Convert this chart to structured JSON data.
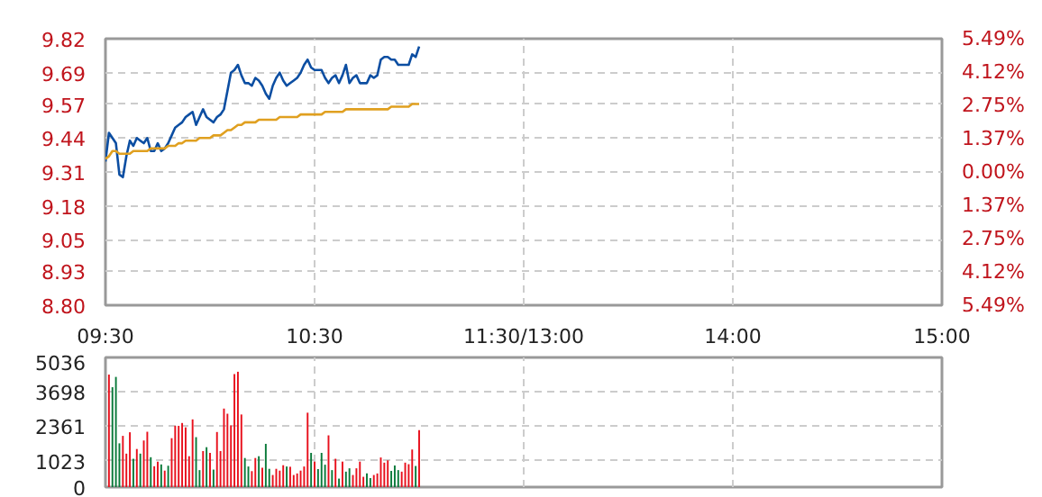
{
  "chart_data": [
    {
      "type": "line",
      "categories": [
        "09:30",
        null,
        null,
        null,
        null,
        null,
        null,
        null,
        null,
        null,
        null,
        null,
        null,
        null,
        null,
        null,
        null,
        null,
        null,
        null,
        null,
        null,
        null,
        null,
        null,
        null,
        null,
        null,
        null,
        null,
        null,
        null,
        null,
        null,
        null,
        null,
        null,
        null,
        null,
        null,
        null,
        null,
        null,
        null,
        null,
        null,
        null,
        null,
        null,
        null,
        null,
        null,
        null,
        null,
        null,
        null,
        null,
        null,
        null,
        null,
        "10:30",
        null,
        null,
        null,
        null,
        null,
        null,
        null,
        null,
        null,
        null,
        null,
        null,
        null,
        null,
        null,
        null,
        null,
        null,
        null,
        null,
        null,
        null,
        null,
        null,
        null,
        null,
        null,
        null,
        null,
        null,
        null,
        null,
        null,
        null,
        null,
        null,
        null,
        null,
        null,
        null,
        null,
        null,
        null,
        null,
        null,
        null,
        null,
        null,
        null,
        null,
        null,
        null,
        null,
        null,
        null,
        null,
        null,
        null,
        null,
        "11:30/13:00",
        null,
        null,
        null,
        null,
        null,
        null,
        null,
        null,
        null,
        null,
        null,
        null,
        null,
        null,
        null,
        null,
        null,
        null,
        null,
        null,
        null,
        null,
        null,
        null,
        null,
        null,
        null,
        null,
        null,
        null,
        null,
        null,
        null,
        null,
        null,
        null,
        null,
        null,
        null,
        null,
        null,
        null,
        null,
        null,
        null,
        null,
        null,
        null,
        null,
        null,
        null,
        null,
        null,
        null,
        null,
        null,
        null,
        null,
        null,
        "14:00",
        null,
        null,
        null,
        null,
        null,
        null,
        null,
        null,
        null,
        null,
        null,
        null,
        null,
        null,
        null,
        null,
        null,
        null,
        null,
        null,
        null,
        null,
        null,
        null,
        null,
        null,
        null,
        null,
        null,
        null,
        null,
        null,
        null,
        null,
        null,
        null,
        null,
        null,
        null,
        null,
        null,
        null,
        null,
        null,
        null,
        null,
        null,
        null,
        null,
        null,
        null,
        null,
        null,
        null,
        null,
        null,
        null,
        null,
        null,
        "15:00"
      ],
      "ylim": [
        8.8,
        9.82
      ],
      "y2lim": [
        -5.49,
        5.49
      ],
      "grid": true,
      "yticks": [
        {
          "value": 8.8,
          "label": "8.80"
        },
        8.93,
        9.05,
        9.18,
        9.31,
        9.44,
        9.57,
        9.69,
        9.82
      ],
      "y2ticks": [
        {
          "value": -5.49,
          "label": "5.49%"
        },
        {
          "value": -4.12,
          "label": "4.12%"
        },
        {
          "value": -2.75,
          "label": "2.75%"
        },
        {
          "value": -1.37,
          "label": "1.37%"
        },
        {
          "value": 0,
          "label": "0.00%"
        },
        {
          "value": 1.37,
          "label": "1.37%"
        },
        {
          "value": 2.75,
          "label": "2.75%"
        },
        {
          "value": 4.12,
          "label": "4.12%"
        },
        {
          "value": 5.49,
          "label": "5.49%"
        }
      ],
      "series": [
        {
          "color": "#0c4ea2",
          "values": [
            9.35,
            9.46,
            9.44,
            9.42,
            9.3,
            9.29,
            9.37,
            9.43,
            9.41,
            9.44,
            9.43,
            9.42,
            9.44,
            9.39,
            9.39,
            9.42,
            9.39,
            9.4,
            9.42,
            9.45,
            9.48,
            9.49,
            9.5,
            9.52,
            9.53,
            9.54,
            9.49,
            9.52,
            9.55,
            9.52,
            9.51,
            9.5,
            9.52,
            9.53,
            9.55,
            9.62,
            9.69,
            9.7,
            9.72,
            9.68,
            9.65,
            9.65,
            9.64,
            9.67,
            9.66,
            9.64,
            9.61,
            9.59,
            9.64,
            9.67,
            9.69,
            9.66,
            9.64,
            9.65,
            9.66,
            9.67,
            9.69,
            9.72,
            9.74,
            9.71,
            9.7,
            9.7,
            9.7,
            9.67,
            9.65,
            9.67,
            9.68,
            9.65,
            9.68,
            9.72,
            9.65,
            9.67,
            9.68,
            9.65,
            9.65,
            9.65,
            9.68,
            9.67,
            9.68,
            9.74,
            9.75,
            9.75,
            9.74,
            9.74,
            9.72,
            9.72,
            9.72,
            9.72,
            9.76,
            9.75,
            9.79,
            null,
            null,
            null,
            null,
            null,
            null,
            null,
            null,
            null,
            null,
            null,
            null,
            null,
            null,
            null,
            null,
            null,
            null,
            null,
            null,
            null,
            null,
            null,
            null,
            null,
            null,
            null,
            null,
            null,
            null,
            null,
            null,
            null,
            null,
            null,
            null,
            null,
            null,
            null,
            null,
            null,
            null,
            null,
            null,
            null,
            null,
            null,
            null,
            null,
            null,
            null,
            null,
            null,
            null,
            null,
            null,
            null,
            null,
            null,
            null,
            null,
            null,
            null,
            null,
            null,
            null,
            null,
            null,
            null,
            null,
            null,
            null,
            null,
            null,
            null,
            null,
            null,
            null,
            null,
            null,
            null,
            null,
            null,
            null,
            null,
            null,
            null,
            null,
            null,
            null,
            null,
            null,
            null,
            null,
            null,
            null,
            null,
            null,
            null,
            null,
            null,
            null,
            null,
            null,
            null,
            null,
            null,
            null,
            null,
            null,
            null,
            null,
            null,
            null,
            null,
            null,
            null,
            null,
            null,
            null,
            null,
            null,
            null,
            null,
            null,
            null,
            null,
            null,
            null,
            null,
            null,
            null,
            null,
            null,
            null,
            null,
            null,
            null,
            null,
            null,
            null,
            null,
            null,
            null,
            null,
            null,
            null,
            null,
            null,
            null
          ]
        },
        {
          "color": "#e0a020",
          "values": [
            9.36,
            9.37,
            9.39,
            9.39,
            9.38,
            9.38,
            9.38,
            9.38,
            9.39,
            9.39,
            9.39,
            9.39,
            9.39,
            9.4,
            9.4,
            9.4,
            9.4,
            9.4,
            9.41,
            9.41,
            9.41,
            9.42,
            9.42,
            9.43,
            9.43,
            9.43,
            9.43,
            9.44,
            9.44,
            9.44,
            9.44,
            9.45,
            9.45,
            9.45,
            9.46,
            9.47,
            9.47,
            9.48,
            9.49,
            9.49,
            9.5,
            9.5,
            9.5,
            9.5,
            9.51,
            9.51,
            9.51,
            9.51,
            9.51,
            9.51,
            9.52,
            9.52,
            9.52,
            9.52,
            9.52,
            9.52,
            9.53,
            9.53,
            9.53,
            9.53,
            9.53,
            9.53,
            9.53,
            9.54,
            9.54,
            9.54,
            9.54,
            9.54,
            9.54,
            9.55,
            9.55,
            9.55,
            9.55,
            9.55,
            9.55,
            9.55,
            9.55,
            9.55,
            9.55,
            9.55,
            9.55,
            9.55,
            9.56,
            9.56,
            9.56,
            9.56,
            9.56,
            9.56,
            9.57,
            9.57,
            9.57,
            null,
            null,
            null,
            null,
            null,
            null,
            null,
            null,
            null,
            null,
            null,
            null,
            null,
            null,
            null,
            null,
            null,
            null,
            null,
            null,
            null,
            null,
            null,
            null,
            null,
            null,
            null,
            null,
            null,
            null,
            null,
            null,
            null,
            null,
            null,
            null,
            null,
            null,
            null,
            null,
            null,
            null,
            null,
            null,
            null,
            null,
            null,
            null,
            null,
            null,
            null,
            null,
            null,
            null,
            null,
            null,
            null,
            null,
            null,
            null,
            null,
            null,
            null,
            null,
            null,
            null,
            null,
            null,
            null,
            null,
            null,
            null,
            null,
            null,
            null,
            null,
            null,
            null,
            null,
            null,
            null,
            null,
            null,
            null,
            null,
            null,
            null,
            null,
            null,
            null,
            null,
            null,
            null,
            null,
            null,
            null,
            null,
            null,
            null,
            null,
            null,
            null,
            null,
            null,
            null,
            null,
            null,
            null,
            null,
            null,
            null,
            null,
            null,
            null,
            null,
            null,
            null,
            null,
            null,
            null,
            null,
            null,
            null,
            null,
            null,
            null,
            null,
            null,
            null,
            null,
            null,
            null,
            null,
            null,
            null,
            null,
            null,
            null,
            null,
            null,
            null,
            null,
            null,
            null,
            null,
            null,
            null,
            null,
            null,
            null
          ]
        }
      ]
    },
    {
      "type": "bar",
      "categories": [
        null,
        null,
        null,
        null,
        null,
        null,
        null,
        null,
        null,
        null,
        null,
        null,
        null,
        null,
        null,
        null,
        null,
        null,
        null,
        null,
        null,
        null,
        null,
        null,
        null,
        null,
        null,
        null,
        null,
        null,
        null,
        null,
        null,
        null,
        null,
        null,
        null,
        null,
        null,
        null,
        null,
        null,
        null,
        null,
        null,
        null,
        null,
        null,
        null,
        null,
        null,
        null,
        null,
        null,
        null,
        null,
        null,
        null,
        null,
        null,
        null,
        null,
        null,
        null,
        null,
        null,
        null,
        null,
        null,
        null,
        null,
        null,
        null,
        null,
        null,
        null,
        null,
        null,
        null,
        null,
        null,
        null,
        null,
        null,
        null,
        null,
        null,
        null,
        null,
        null,
        null,
        null,
        null,
        null,
        null,
        null,
        null,
        null,
        null,
        null,
        null,
        null,
        null,
        null,
        null,
        null,
        null,
        null,
        null,
        null,
        null,
        null,
        null,
        null,
        null,
        null,
        null,
        null,
        null,
        null,
        null,
        null,
        null,
        null,
        null,
        null,
        null,
        null,
        null,
        null,
        null,
        null,
        null,
        null,
        null,
        null,
        null,
        null,
        null,
        null,
        null,
        null,
        null,
        null,
        null,
        null,
        null,
        null,
        null,
        null,
        null,
        null,
        null,
        null,
        null,
        null,
        null,
        null,
        null,
        null,
        null,
        null,
        null,
        null,
        null,
        null,
        null,
        null,
        null,
        null,
        null,
        null,
        null,
        null,
        null,
        null,
        null,
        null,
        null,
        null,
        null,
        null,
        null,
        null,
        null,
        null,
        null,
        null,
        null,
        null,
        null,
        null,
        null,
        null,
        null,
        null,
        null,
        null,
        null,
        null,
        null,
        null,
        null,
        null,
        null,
        null,
        null,
        null,
        null,
        null,
        null,
        null,
        null,
        null,
        null,
        null,
        null,
        null,
        null,
        null,
        null,
        null,
        null,
        null,
        null,
        null,
        null,
        null,
        null,
        null,
        null,
        null,
        null,
        null,
        null,
        null,
        null,
        null,
        null,
        null,
        null
      ],
      "ylim": [
        0,
        5036
      ],
      "yticks": [
        0,
        1023,
        2361,
        3698,
        5036
      ],
      "grid": true,
      "tick_labels": "y",
      "values": [
        null,
        4370,
        3880,
        4280,
        1700,
        1990,
        1300,
        2130,
        1100,
        1480,
        1300,
        1810,
        2150,
        1160,
        810,
        990,
        880,
        640,
        830,
        1900,
        2380,
        2380,
        2490,
        2320,
        1200,
        2630,
        1940,
        660,
        1400,
        1550,
        1330,
        680,
        2140,
        1400,
        3050,
        2850,
        2400,
        4390,
        4480,
        2820,
        1130,
        800,
        620,
        1130,
        1200,
        750,
        1680,
        710,
        470,
        710,
        640,
        850,
        800,
        790,
        470,
        530,
        640,
        800,
        2890,
        1330,
        990,
        700,
        1330,
        870,
        2010,
        660,
        1100,
        330,
        990,
        600,
        730,
        470,
        730,
        990,
        400,
        530,
        350,
        470,
        530,
        1150,
        950,
        1040,
        630,
        840,
        660,
        600,
        950,
        890,
        1460,
        820,
        2210,
        null,
        null,
        null,
        null,
        null,
        null,
        null,
        null,
        null,
        null,
        null,
        null,
        null,
        null,
        null,
        null,
        null,
        null,
        null,
        null,
        null,
        null,
        null,
        null,
        null,
        null,
        null,
        null,
        null,
        null,
        null,
        null,
        null,
        null,
        null,
        null,
        null,
        null,
        null,
        null,
        null,
        null,
        null,
        null,
        null,
        null,
        null,
        null,
        null,
        null,
        null,
        null,
        null,
        null,
        null,
        null,
        null,
        null,
        null,
        null,
        null,
        null,
        null,
        null,
        null,
        null,
        null,
        null,
        null,
        null,
        null,
        null,
        null,
        null,
        null,
        null,
        null,
        null,
        null,
        null,
        null,
        null,
        null,
        null,
        null,
        null,
        null,
        null,
        null,
        null,
        null,
        null,
        null,
        null,
        null,
        null,
        null,
        null,
        null,
        null,
        null,
        null,
        null,
        null,
        null,
        null,
        null,
        null,
        null,
        null,
        null,
        null,
        null,
        null,
        null,
        null,
        null,
        null,
        null,
        null,
        null,
        null,
        null,
        null,
        null,
        null,
        null,
        null,
        null,
        null,
        null,
        null,
        null,
        null,
        null,
        null,
        null,
        null,
        null,
        null,
        null,
        null,
        null,
        null,
        null,
        null,
        null,
        null,
        null,
        null
      ],
      "colors": [
        null,
        "#e8101c",
        "#0a7a3a",
        "#0a7a3a",
        "#0a7a3a",
        "#e8101c",
        "#e8101c",
        "#e8101c",
        "#0a7a3a",
        "#e8101c",
        "#0a7a3a",
        "#e8101c",
        "#e8101c",
        "#0a7a3a",
        "#e8101c",
        "#e8101c",
        "#0a7a3a",
        "#e8101c",
        "#0a7a3a",
        "#e8101c",
        "#e8101c",
        "#e8101c",
        "#e8101c",
        "#e8101c",
        "#e8101c",
        "#e8101c",
        "#0a7a3a",
        "#0a7a3a",
        "#e8101c",
        "#0a7a3a",
        "#e8101c",
        "#0a7a3a",
        "#e8101c",
        "#e8101c",
        "#e8101c",
        "#e8101c",
        "#e8101c",
        "#e8101c",
        "#e8101c",
        "#e8101c",
        "#0a7a3a",
        "#0a7a3a",
        "#e8101c",
        "#e8101c",
        "#0a7a3a",
        "#e8101c",
        "#0a7a3a",
        "#0a7a3a",
        "#e8101c",
        "#e8101c",
        "#e8101c",
        "#e8101c",
        "#0a7a3a",
        "#e8101c",
        "#e8101c",
        "#e8101c",
        "#e8101c",
        "#e8101c",
        "#e8101c",
        "#0a7a3a",
        "#e8101c",
        "#0a7a3a",
        "#0a7a3a",
        "#0a7a3a",
        "#e8101c",
        "#0a7a3a",
        "#e8101c",
        "#0a7a3a",
        "#e8101c",
        "#0a7a3a",
        "#0a7a3a",
        "#e8101c",
        "#e8101c",
        "#e8101c",
        "#e8101c",
        "#0a7a3a",
        "#0a7a3a",
        "#e8101c",
        "#e8101c",
        "#e8101c",
        "#e8101c",
        "#e8101c",
        "#0a7a3a",
        "#0a7a3a",
        "#0a7a3a",
        "#e8101c",
        "#e8101c",
        "#e8101c",
        "#e8101c",
        "#0a7a3a",
        "#e8101c",
        null,
        null,
        null,
        null,
        null,
        null,
        null,
        null,
        null,
        null,
        null,
        null,
        null,
        null,
        null,
        null,
        null,
        null,
        null,
        null,
        null,
        null,
        null,
        null,
        null,
        null,
        null,
        null,
        null,
        null,
        null,
        null,
        null,
        null,
        null,
        null,
        null,
        null,
        null,
        null,
        null,
        null,
        null,
        null,
        null,
        null,
        null,
        null,
        null,
        null,
        null,
        null,
        null,
        null,
        null,
        null,
        null,
        null,
        null,
        null,
        null,
        null,
        null,
        null,
        null,
        null,
        null,
        null,
        null,
        null,
        null,
        null,
        null,
        null,
        null,
        null,
        null,
        null,
        null,
        null,
        null,
        null,
        null,
        null,
        null,
        null,
        null,
        null,
        null,
        null,
        null,
        null,
        null,
        null,
        null,
        null,
        null,
        null,
        null,
        null,
        null,
        null,
        null,
        null,
        null,
        null,
        null,
        null,
        null,
        null,
        null,
        null,
        null,
        null,
        null,
        null,
        null,
        null,
        null,
        null,
        null,
        null,
        null,
        null,
        null,
        null,
        null,
        null,
        null,
        null,
        null,
        null,
        null,
        null,
        null,
        null,
        null,
        null,
        null,
        null,
        null,
        null,
        null,
        null,
        null,
        null,
        null,
        null,
        null,
        null
      ]
    }
  ]
}
